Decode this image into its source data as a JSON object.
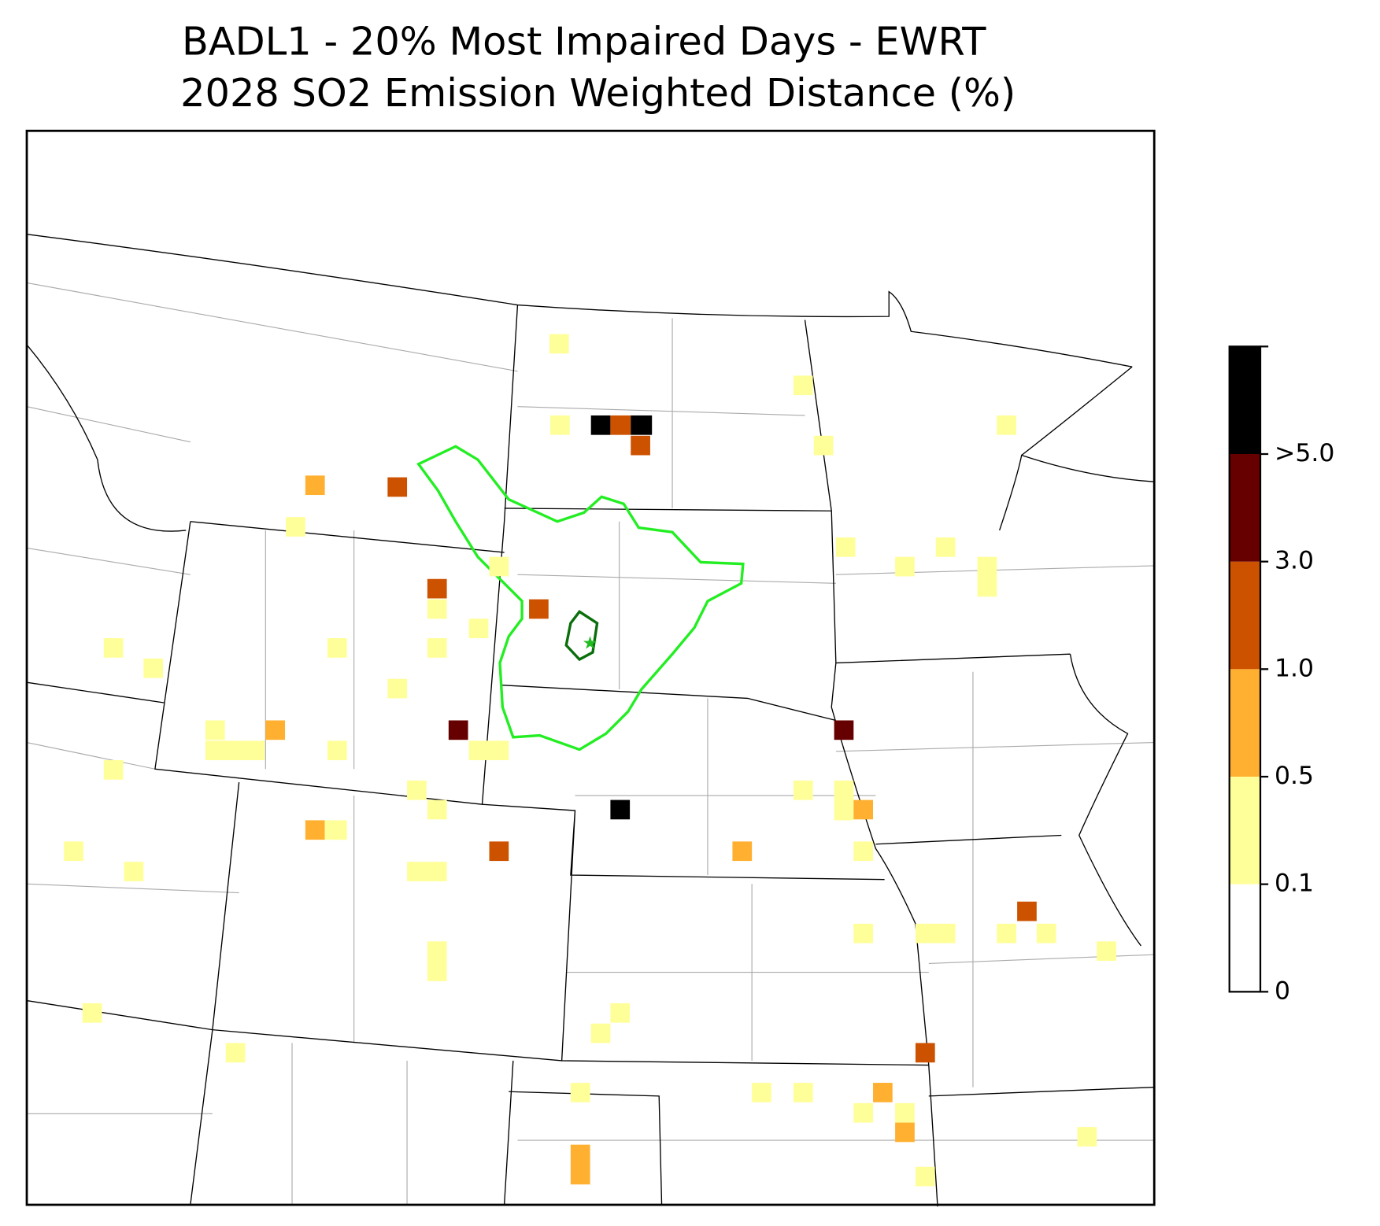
{
  "chart_data": {
    "type": "map",
    "title": "BADL1 - 20% Most Impaired Days - EWRT",
    "subtitle": "2028 SO2 Emission Weighted Distance (%)",
    "colorbar": {
      "ticks": [
        0,
        0.1,
        0.5,
        {
          "value": 1,
          "label": "1.0"
        },
        {
          "value": 3,
          "label": "3.0"
        },
        {
          "value": 5,
          "label": ">5.0"
        }
      ],
      "colors": [
        "#ffffff",
        "#ffff99",
        "#ffb030",
        "#cc5200",
        "#660000",
        "#000000"
      ]
    }
  }
}
